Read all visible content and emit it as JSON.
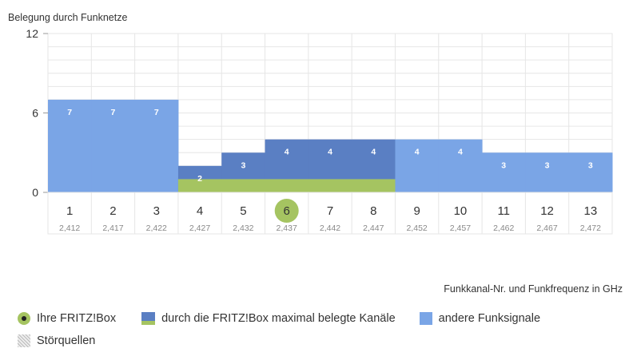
{
  "chart_data": {
    "type": "bar",
    "title": "",
    "ylabel": "Belegung durch Funknetze",
    "xlabel": "Funkkanal-Nr. und Funkfrequenz in GHz",
    "ylim": [
      0,
      12
    ],
    "yticks": [
      "0",
      "6",
      "12"
    ],
    "categories": [
      "1",
      "2",
      "3",
      "4",
      "5",
      "6",
      "7",
      "8",
      "9",
      "10",
      "11",
      "12",
      "13"
    ],
    "frequencies": [
      "2,412",
      "2,417",
      "2,422",
      "2,427",
      "2,432",
      "2,437",
      "2,442",
      "2,447",
      "2,452",
      "2,457",
      "2,462",
      "2,467",
      "2,472"
    ],
    "selected_channel": "6",
    "series": [
      {
        "name": "andere Funksignale",
        "color": "#7aa5e6",
        "values": [
          7,
          7,
          7,
          2,
          3,
          4,
          4,
          4,
          4,
          4,
          3,
          3,
          3
        ]
      },
      {
        "name": "durch die FRITZ!Box maximal belegte Kanäle",
        "color": "#5a7fc3",
        "channels": [
          4,
          5,
          6,
          7,
          8
        ]
      }
    ],
    "fritzbox_band_channels": [
      4,
      5,
      6,
      7,
      8
    ]
  },
  "legend": {
    "items": [
      {
        "label": "Ihre FRITZ!Box"
      },
      {
        "label": "durch die FRITZ!Box maximal belegte Kanäle"
      },
      {
        "label": "andere Funksignale"
      },
      {
        "label": "Störquellen"
      }
    ]
  },
  "colors": {
    "other": "#7aa5e6",
    "fritz": "#5a7fc3",
    "green": "#a5c461",
    "grid": "#e6e6e6"
  }
}
